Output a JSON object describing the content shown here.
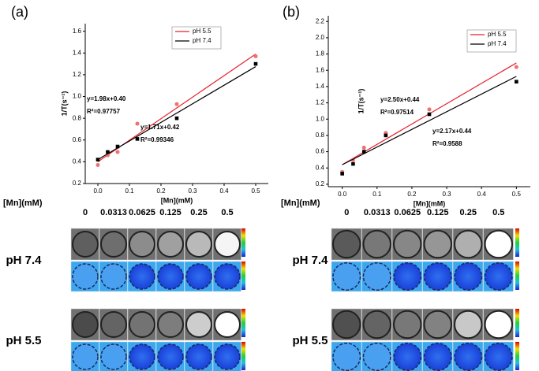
{
  "chart_data": [
    {
      "type": "scatter",
      "panel_label": "(a)",
      "x_label": "[Mn](mM)",
      "y_label": "1/T(s⁻¹)",
      "x": [
        0,
        0.03125,
        0.0625,
        0.125,
        0.25,
        0.5
      ],
      "series": [
        {
          "name": "pH 5.5",
          "color": "#e8202a",
          "marker_color": "#f07070",
          "marker": "circle",
          "values": [
            0.37,
            0.46,
            0.49,
            0.75,
            0.93,
            1.37
          ],
          "trend": {
            "x": [
              0,
              0.5
            ],
            "values": [
              0.4,
              1.39
            ]
          }
        },
        {
          "name": "pH 7.4",
          "color": "#000000",
          "marker_color": "#000000",
          "marker": "square",
          "values": [
            0.42,
            0.49,
            0.54,
            0.61,
            0.8,
            1.3
          ],
          "trend": {
            "x": [
              0,
              0.5
            ],
            "values": [
              0.42,
              1.275
            ]
          }
        }
      ],
      "annotations": [
        "y=1.98x+0.40",
        "R²=0.97757",
        "y=1.71x+0.42",
        "R²=0.99346"
      ],
      "xlim": [
        -0.04,
        0.54
      ],
      "xticks": [
        {
          "value": 0,
          "label": "0.0"
        },
        0.1,
        0.2,
        0.3,
        0.4,
        0.5
      ],
      "ylim": [
        0.2,
        1.67
      ],
      "yticks": [
        0.2,
        0.4,
        0.6,
        0.8,
        {
          "value": 1,
          "label": "1.0"
        },
        1.2,
        1.4,
        1.6
      ],
      "legend": "upper right"
    },
    {
      "type": "scatter",
      "panel_label": "(b)",
      "x_label": "[Mn](mM)",
      "y_label": "1/T(s⁻¹)",
      "x": [
        0,
        0.03125,
        0.0625,
        0.125,
        0.25,
        0.5
      ],
      "series": [
        {
          "name": "pH 5.5",
          "color": "#e8202a",
          "marker_color": "#f07070",
          "marker": "circle",
          "values": [
            0.35,
            0.5,
            0.65,
            0.83,
            1.12,
            1.64
          ],
          "trend": {
            "x": [
              0,
              0.5
            ],
            "values": [
              0.44,
              1.69
            ]
          }
        },
        {
          "name": "pH 7.4",
          "color": "#000000",
          "marker_color": "#000000",
          "marker": "square",
          "values": [
            0.33,
            0.45,
            0.6,
            0.8,
            1.06,
            1.46
          ],
          "trend": {
            "x": [
              0,
              0.5
            ],
            "values": [
              0.44,
              1.525
            ]
          }
        }
      ],
      "annotations": [
        "y=2.50x+0.44",
        "R²=0.97514",
        "y=2.17x+0.44",
        "R²=0.9588"
      ],
      "xlim": [
        -0.04,
        0.54
      ],
      "xticks": [
        {
          "value": 0,
          "label": "0.0"
        },
        0.1,
        0.2,
        0.3,
        0.4,
        0.5
      ],
      "ylim": [
        0.17,
        2.27
      ],
      "yticks": [
        0.2,
        0.4,
        0.6,
        0.8,
        {
          "value": 1,
          "label": "1.0"
        },
        1.2,
        1.4,
        1.6,
        1.8,
        {
          "value": 2,
          "label": "2.0"
        },
        2.2
      ],
      "legend": "upper right"
    }
  ],
  "image_panels": [
    {
      "header": "[Mn](mM)",
      "concentrations": [
        "0",
        "0.0313",
        "0.0625",
        "0.125",
        "0.25",
        "0.5"
      ],
      "rows": [
        "pH 7.4",
        "pH 5.5"
      ]
    },
    {
      "header": "[Mn](mM)",
      "concentrations": [
        "0",
        "0.0313",
        "0.0625",
        "0.125",
        "0.25",
        "0.5"
      ],
      "rows": [
        "pH 7.4",
        "pH 5.5"
      ]
    }
  ]
}
